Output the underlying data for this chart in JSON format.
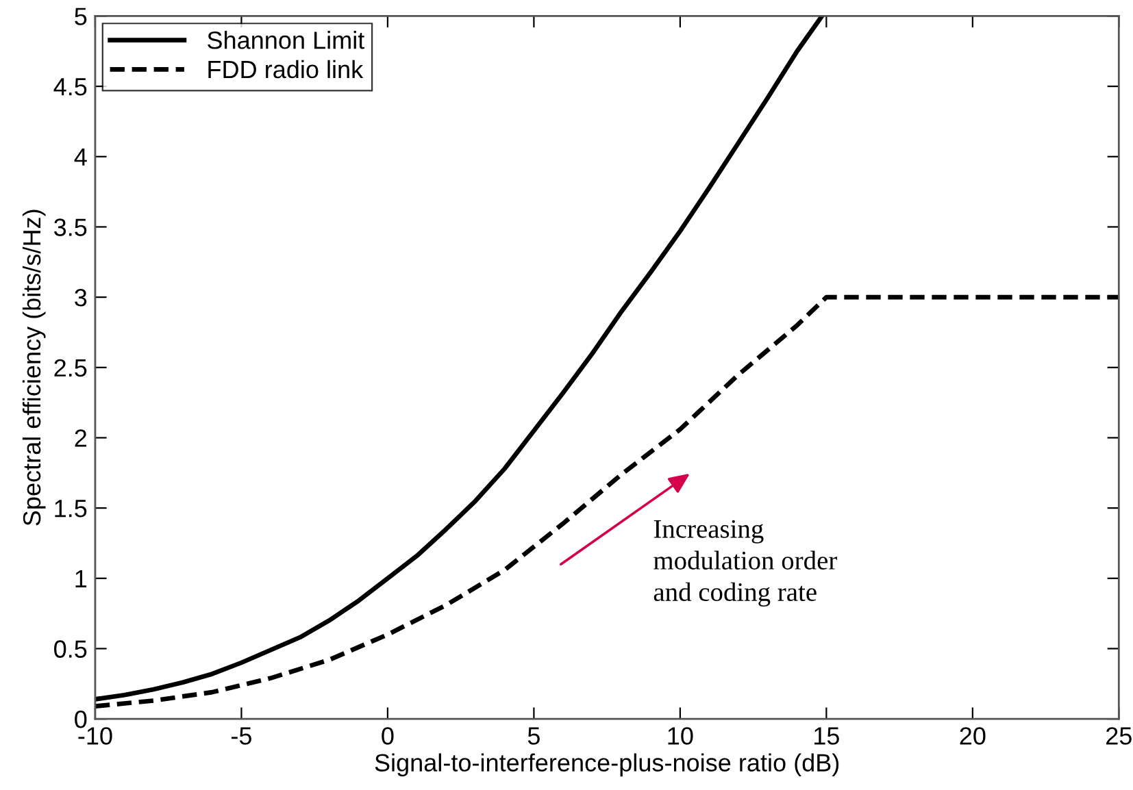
{
  "chart_data": {
    "type": "line",
    "xlabel": "Signal-to-interference-plus-noise ratio (dB)",
    "ylabel": "Spectral efficiency (bits/s/Hz)",
    "series": [
      {
        "name": "Shannon Limit",
        "color": "#000000",
        "line_style": "solid",
        "x": [
          -10,
          -9,
          -8,
          -7,
          -6,
          -5,
          -4,
          -3,
          -2,
          -1,
          0,
          1,
          2,
          3,
          4,
          5,
          6,
          7,
          8,
          9,
          10,
          11,
          12,
          13,
          14,
          14.85
        ],
        "values": [
          0.14,
          0.17,
          0.21,
          0.26,
          0.32,
          0.4,
          0.49,
          0.58,
          0.7,
          0.84,
          1.0,
          1.16,
          1.35,
          1.55,
          1.78,
          2.05,
          2.32,
          2.6,
          2.9,
          3.18,
          3.47,
          3.78,
          4.1,
          4.42,
          4.75,
          5.0
        ]
      },
      {
        "name": "FDD radio link",
        "color": "#000000",
        "line_style": "dashed",
        "x": [
          -10,
          -8,
          -6,
          -4,
          -2,
          0,
          2,
          4,
          6,
          8,
          10,
          12,
          14,
          15,
          25
        ],
        "values": [
          0.09,
          0.13,
          0.19,
          0.29,
          0.42,
          0.6,
          0.81,
          1.06,
          1.39,
          1.74,
          2.06,
          2.45,
          2.8,
          3.0,
          3.0
        ]
      }
    ],
    "xlim": [
      -10,
      25
    ],
    "ylim": [
      0,
      5
    ],
    "xticks": [
      -10,
      -5,
      0,
      5,
      10,
      15,
      20,
      25
    ],
    "yticks": [
      0,
      0.5,
      1,
      1.5,
      2,
      2.5,
      3,
      3.5,
      4,
      4.5,
      5
    ],
    "grid": false,
    "legend": "top left",
    "annotations": [
      "Increasing\nmodulation order\nand coding rate"
    ]
  }
}
